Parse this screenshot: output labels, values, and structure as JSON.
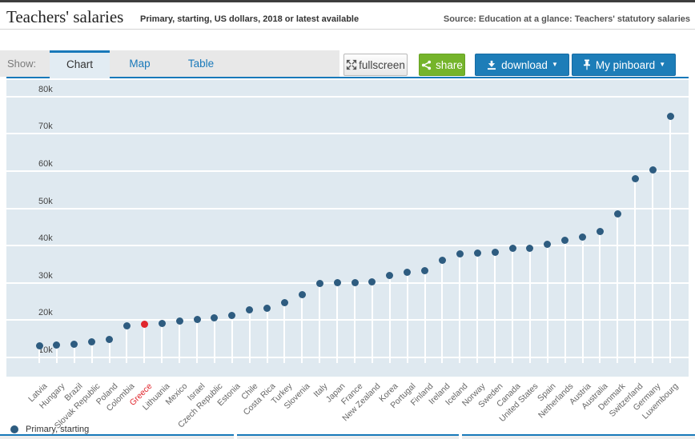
{
  "header": {
    "title": "Teachers' salaries",
    "subtitle": "Primary, starting, US dollars, 2018 or latest available",
    "source": "Source: Education at a glance: Teachers' statutory salaries"
  },
  "toolbar": {
    "show_label": "Show:",
    "tabs": [
      {
        "label": "Chart",
        "active": true
      },
      {
        "label": "Map",
        "active": false
      },
      {
        "label": "Table",
        "active": false
      }
    ],
    "fullscreen_label": "fullscreen",
    "share_label": "share",
    "download_label": "download",
    "pinboard_label": "My pinboard",
    "caret": "▼"
  },
  "colors": {
    "accent_blue": "#1879ba",
    "button_blue": "#1d7db8",
    "share_green": "#75b42b",
    "dot_navy": "#2e5c80",
    "highlight_red": "#e0262d",
    "plot_background": "#dfe9f0"
  },
  "legend": {
    "label": "Primary, starting",
    "marker_color": "#2e5c80"
  },
  "chart_data": {
    "type": "scatter",
    "variant": "lollipop",
    "title": "Teachers' salaries",
    "subtitle": "Primary, starting, US dollars, 2018 or latest available",
    "unit": "US dollars",
    "series_name": "Primary, starting",
    "grid": "horizontal white gridlines on light blue background",
    "legend_position": "bottom-left",
    "ylim": [
      8500,
      85000
    ],
    "yticks": [
      {
        "label": "10k",
        "value": 10000
      },
      {
        "label": "20k",
        "value": 20000
      },
      {
        "label": "30k",
        "value": 30000
      },
      {
        "label": "40k",
        "value": 40000
      },
      {
        "label": "50k",
        "value": 50000
      },
      {
        "label": "60k",
        "value": 60000
      },
      {
        "label": "70k",
        "value": 70000
      },
      {
        "label": "80k",
        "value": 80000
      }
    ],
    "highlight_category": "Greece",
    "categories": [
      "Latvia",
      "Hungary",
      "Brazil",
      "Slovak Republic",
      "Poland",
      "Colombia",
      "Greece",
      "Lithuania",
      "Mexico",
      "Israel",
      "Czech Republic",
      "Estonia",
      "Chile",
      "Costa Rica",
      "Turkey",
      "Slovenia",
      "Italy",
      "Japan",
      "France",
      "New Zealand",
      "Korea",
      "Portugal",
      "Finland",
      "Ireland",
      "Iceland",
      "Norway",
      "Sweden",
      "Canada",
      "United States",
      "Spain",
      "Netherlands",
      "Austria",
      "Australia",
      "Denmark",
      "Switzerland",
      "Germany",
      "Luxembourg"
    ],
    "values": [
      13200,
      13300,
      13500,
      14100,
      14900,
      18400,
      18800,
      19200,
      19800,
      20300,
      20700,
      21200,
      22700,
      23200,
      24800,
      26800,
      29800,
      30000,
      30100,
      30200,
      31900,
      32900,
      33200,
      36000,
      37700,
      37900,
      38300,
      39200,
      39300,
      40300,
      41500,
      42200,
      43900,
      48600,
      57900,
      60400,
      74600
    ]
  }
}
